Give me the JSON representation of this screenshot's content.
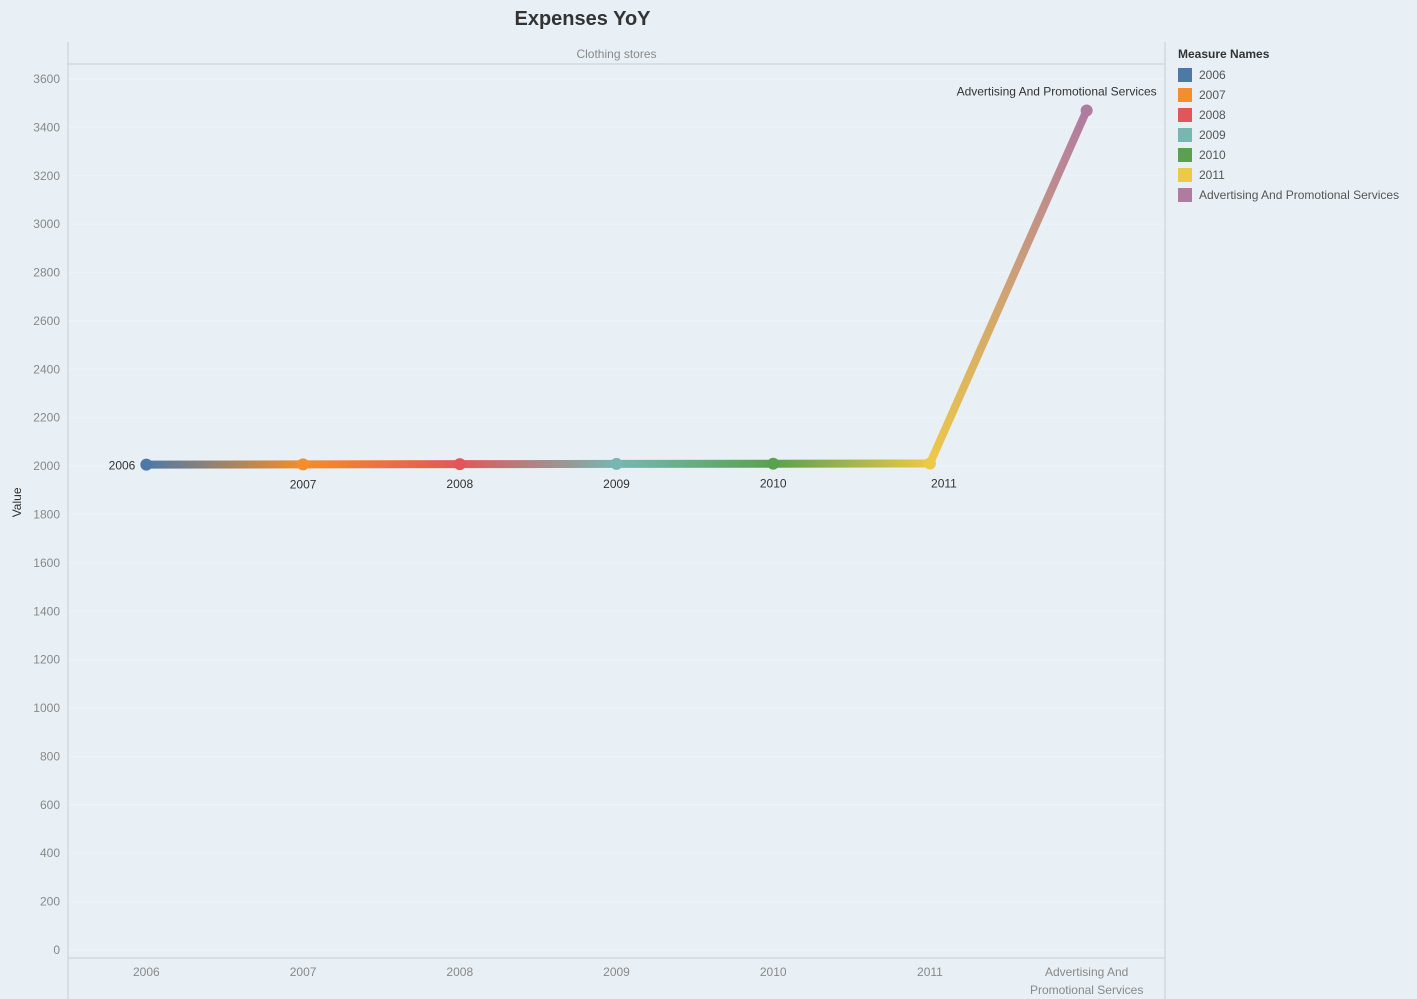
{
  "chart_data": {
    "type": "line",
    "title": "Expenses YoY",
    "panel_header": "Clothing stores",
    "xlabel": "",
    "ylabel": "Value",
    "categories": [
      "2006",
      "2007",
      "2008",
      "2009",
      "2010",
      "2011",
      "Advertising And Promotional Services"
    ],
    "x_tick_labels": [
      "2006",
      "2007",
      "2008",
      "2009",
      "2010",
      "2011",
      [
        "Advertising And",
        "Promotional Services"
      ]
    ],
    "values": [
      2006,
      2007,
      2008,
      2009,
      2010,
      2011,
      3470
    ],
    "point_labels": [
      "2006",
      "2007",
      "2008",
      "2009",
      "2010",
      "2011",
      "Advertising And Promotional Services"
    ],
    "ylim": [
      0,
      3650
    ],
    "yticks": [
      0,
      200,
      400,
      600,
      800,
      1000,
      1200,
      1400,
      1600,
      1800,
      2000,
      2200,
      2400,
      2600,
      2800,
      3000,
      3200,
      3400,
      3600
    ],
    "grid": true,
    "legend_position": "right",
    "legend": {
      "title": "Measure Names",
      "items": [
        {
          "label": "2006",
          "color": "#4e79a7"
        },
        {
          "label": "2007",
          "color": "#f28e2b"
        },
        {
          "label": "2008",
          "color": "#e15759"
        },
        {
          "label": "2009",
          "color": "#76b7b2"
        },
        {
          "label": "2010",
          "color": "#59a14f"
        },
        {
          "label": "2011",
          "color": "#edc948"
        },
        {
          "label": "Advertising And Promotional Services",
          "color": "#b07aa1"
        }
      ]
    }
  }
}
